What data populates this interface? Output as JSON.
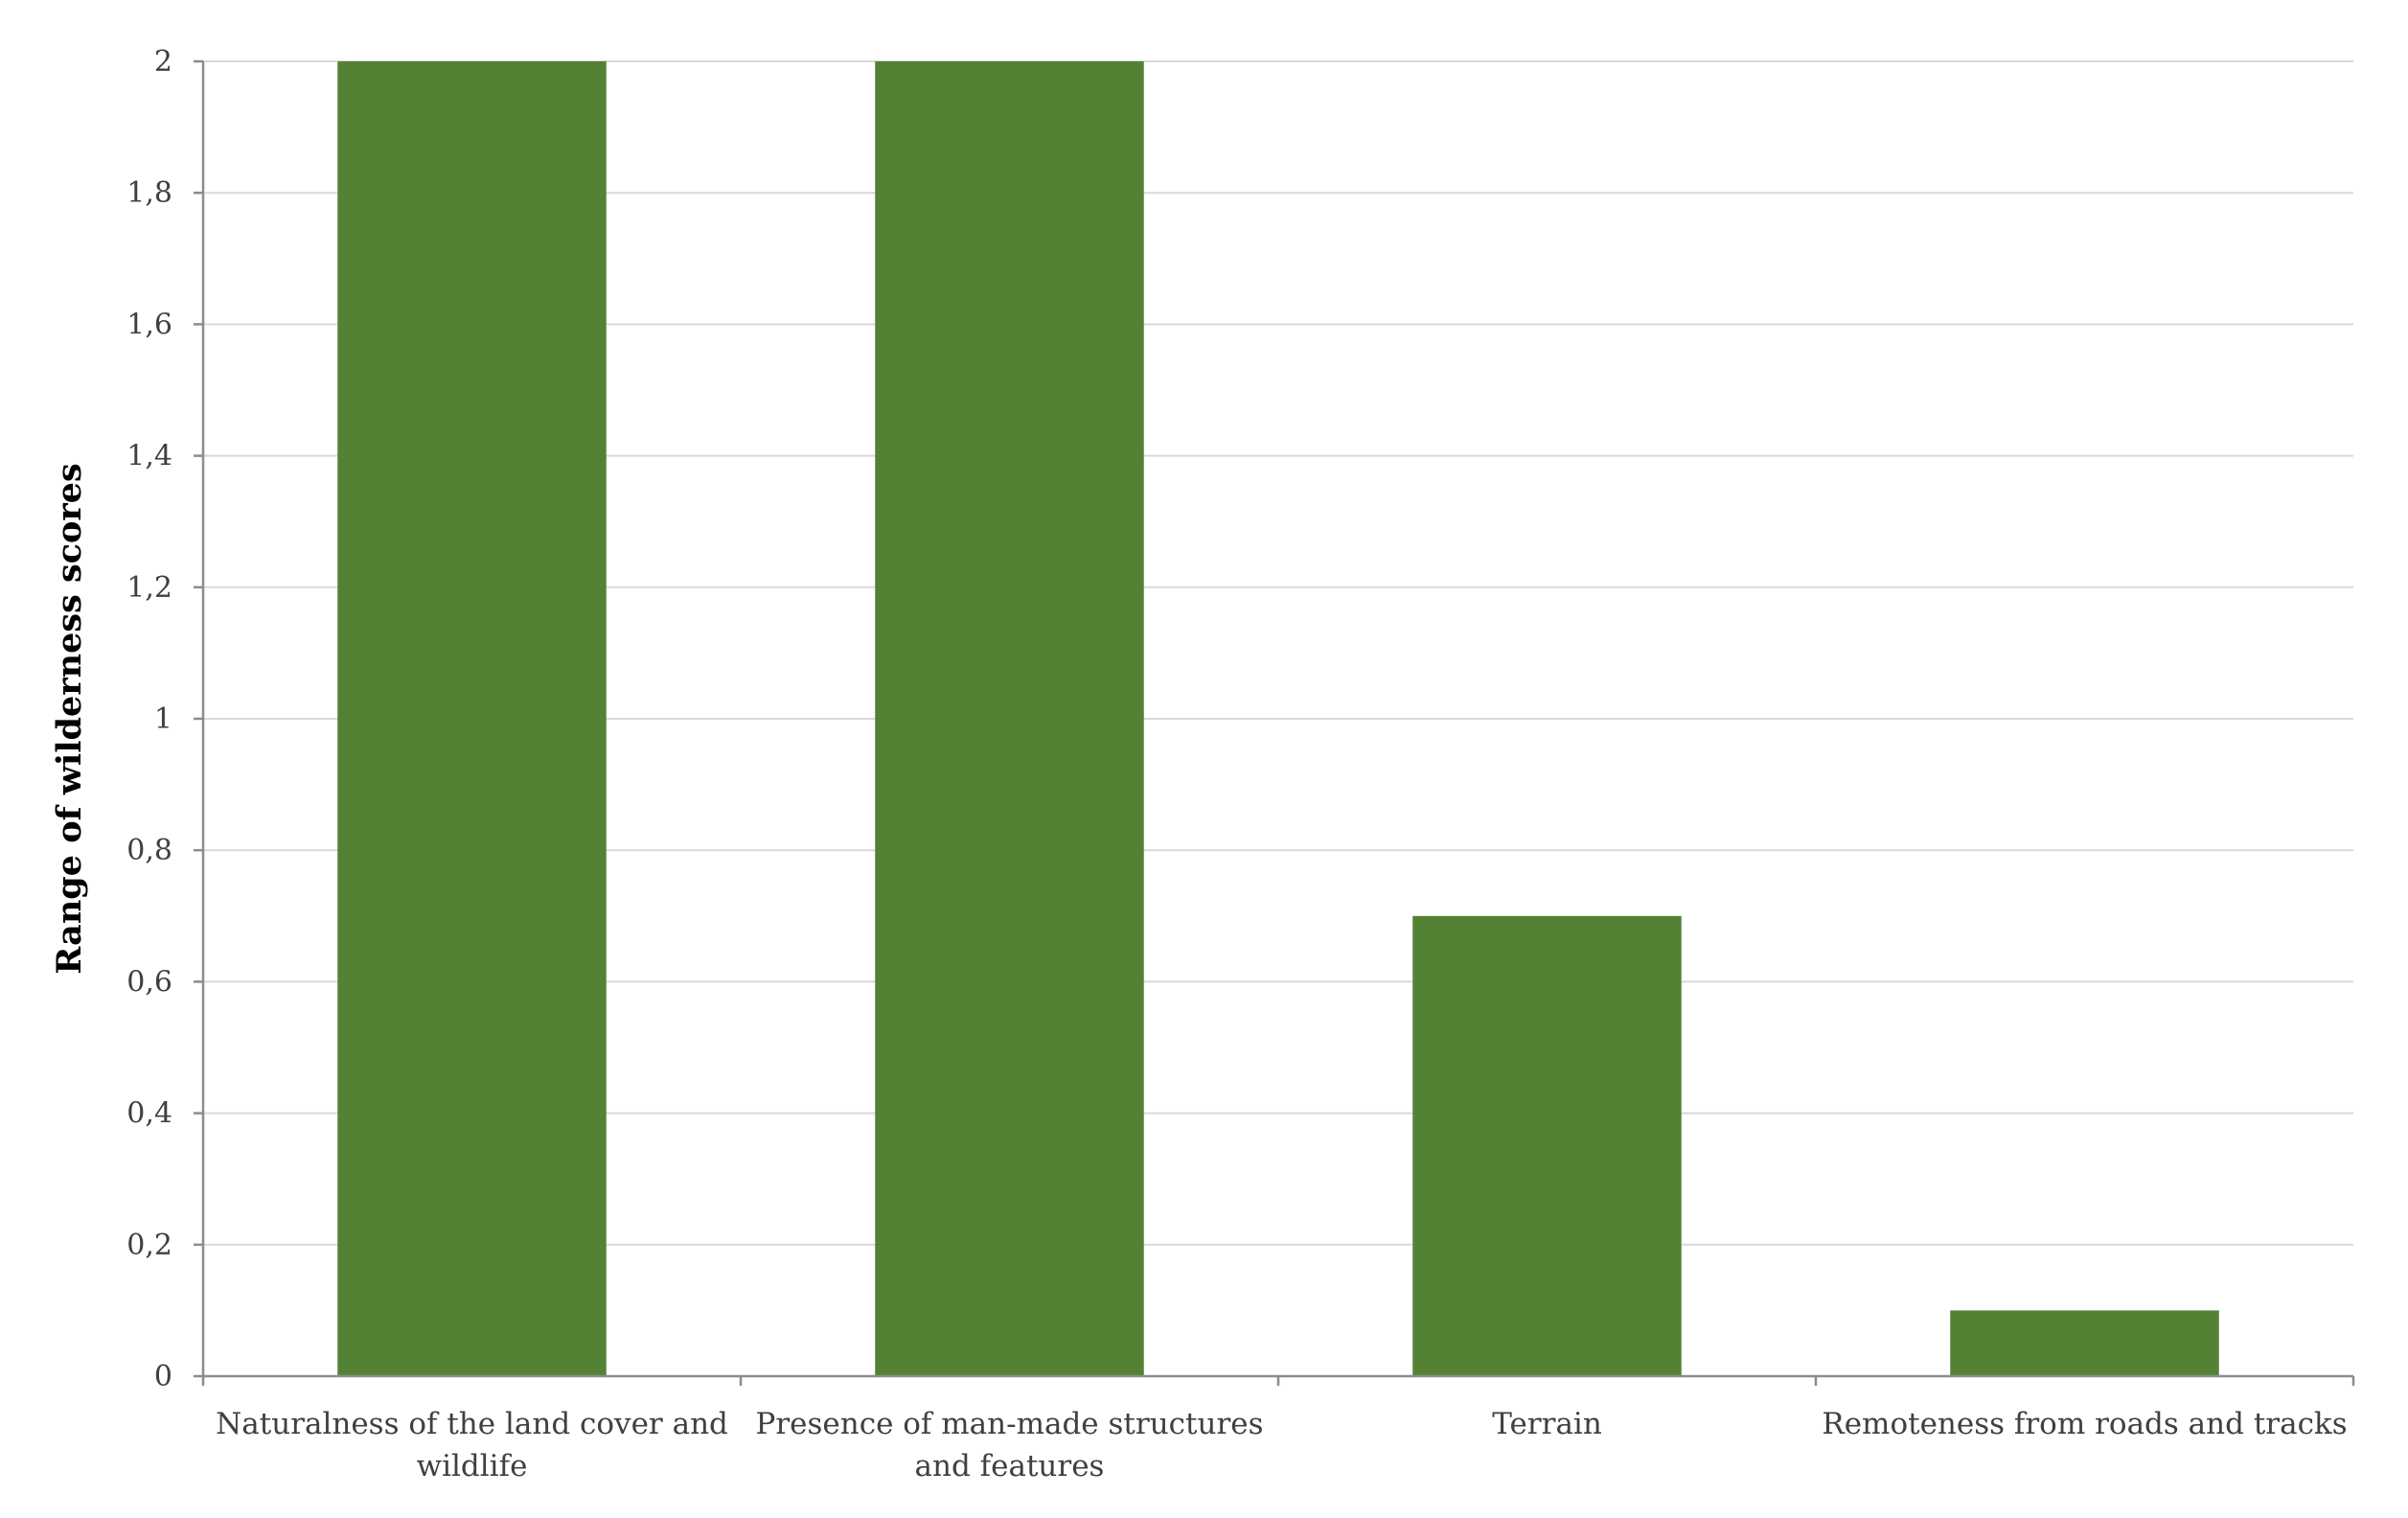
{
  "chart_data": {
    "type": "bar",
    "categories": [
      [
        "Naturalness of the land cover and",
        "wildlife"
      ],
      [
        "Presence of man-made structures",
        "and features"
      ],
      [
        "Terrain"
      ],
      [
        "Remoteness from roads and tracks"
      ]
    ],
    "values": [
      2,
      2,
      0.7,
      0.1
    ],
    "title": "",
    "xlabel": "",
    "ylabel": "Range of wilderness scores",
    "ylim": [
      0,
      2
    ],
    "yticks": [
      0,
      0.2,
      0.4,
      0.6,
      0.8,
      1,
      1.2,
      1.4,
      1.6,
      1.8,
      2
    ],
    "ytick_labels": [
      "0",
      "0,2",
      "0,4",
      "0,6",
      "0,8",
      "1",
      "1,2",
      "1,4",
      "1,6",
      "1,8",
      "2"
    ],
    "grid": true,
    "legend": "none",
    "bar_color": "#548235"
  }
}
